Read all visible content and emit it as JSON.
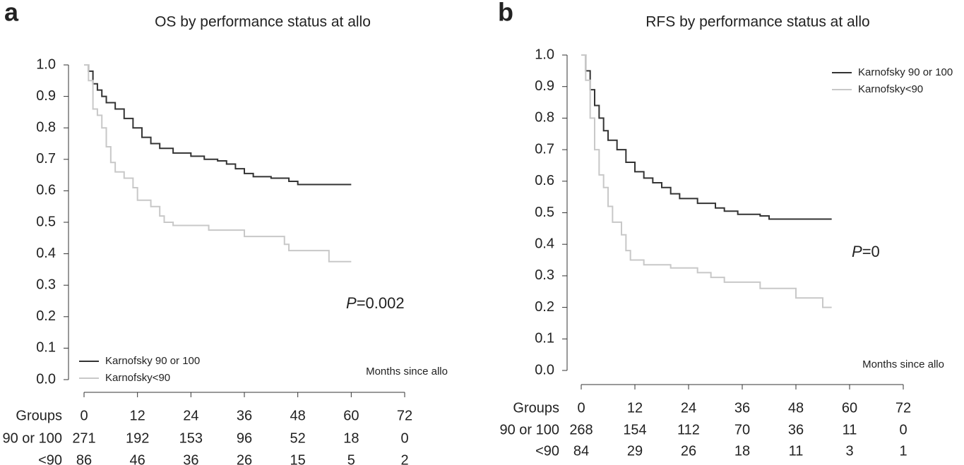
{
  "chart_data": [
    {
      "type": "line",
      "panel": "a",
      "title": "OS by performance status at allo",
      "x_label": "Months since allo",
      "xlim": [
        0,
        72
      ],
      "xticks": [
        0,
        12,
        24,
        36,
        48,
        60,
        72
      ],
      "ylim": [
        0,
        1
      ],
      "yticks": [
        {
          "value": 0,
          "label": "0.0"
        },
        {
          "value": 0.1,
          "label": "0.1"
        },
        {
          "value": 0.2,
          "label": "0.2"
        },
        {
          "value": 0.3,
          "label": "0.3"
        },
        {
          "value": 0.4,
          "label": "0.4"
        },
        {
          "value": 0.5,
          "label": "0.5"
        },
        {
          "value": 0.6,
          "label": "0.6"
        },
        {
          "value": 0.7,
          "label": "0.7"
        },
        {
          "value": 0.8,
          "label": "0.8"
        },
        {
          "value": 0.9,
          "label": "0.9"
        },
        {
          "value": 1,
          "label": "1.0"
        }
      ],
      "step": true,
      "legend": "lower left",
      "annotation": {
        "symbol": "P",
        "text": "=0.002"
      },
      "series": [
        {
          "name": "Karnofsky 90 or 100",
          "color": "#333333",
          "x": [
            0,
            1,
            2,
            3,
            4,
            5,
            7,
            9,
            11,
            13,
            15,
            17,
            20,
            24,
            27,
            30,
            32,
            34,
            36,
            38,
            42,
            46,
            48,
            60
          ],
          "values": [
            1.0,
            0.98,
            0.94,
            0.92,
            0.9,
            0.88,
            0.86,
            0.83,
            0.8,
            0.77,
            0.75,
            0.735,
            0.72,
            0.71,
            0.7,
            0.695,
            0.685,
            0.67,
            0.655,
            0.645,
            0.64,
            0.63,
            0.62,
            0.62
          ]
        },
        {
          "name": "Karnofsky<90",
          "color": "#c8c8c8",
          "x": [
            0,
            1,
            2,
            3,
            4,
            5,
            6,
            7,
            9,
            11,
            12,
            15,
            17,
            18,
            20,
            28,
            36,
            45,
            46,
            55,
            60
          ],
          "values": [
            1.0,
            0.95,
            0.86,
            0.84,
            0.8,
            0.74,
            0.69,
            0.66,
            0.64,
            0.61,
            0.57,
            0.55,
            0.52,
            0.5,
            0.49,
            0.475,
            0.455,
            0.43,
            0.41,
            0.375,
            0.375
          ]
        }
      ],
      "risk_table": {
        "label": "Groups",
        "rows": [
          {
            "name": "90 or 100",
            "counts": [
              271,
              192,
              153,
              96,
              52,
              18,
              0
            ]
          },
          {
            "name": "<90",
            "counts": [
              86,
              46,
              36,
              26,
              15,
              5,
              2
            ]
          }
        ]
      }
    },
    {
      "type": "line",
      "panel": "b",
      "title": "RFS by performance status at allo",
      "x_label": "Months since allo",
      "xlim": [
        0,
        72
      ],
      "xticks": [
        0,
        12,
        24,
        36,
        48,
        60,
        72
      ],
      "ylim": [
        0,
        1
      ],
      "yticks": [
        {
          "value": 0,
          "label": "0.0"
        },
        {
          "value": 0.1,
          "label": "0.1"
        },
        {
          "value": 0.2,
          "label": "0.2"
        },
        {
          "value": 0.3,
          "label": "0.3"
        },
        {
          "value": 0.4,
          "label": "0.4"
        },
        {
          "value": 0.5,
          "label": "0.5"
        },
        {
          "value": 0.6,
          "label": "0.6"
        },
        {
          "value": 0.7,
          "label": "0.7"
        },
        {
          "value": 0.8,
          "label": "0.8"
        },
        {
          "value": 0.9,
          "label": "0.9"
        },
        {
          "value": 1,
          "label": "1.0"
        }
      ],
      "step": true,
      "legend": "upper right",
      "annotation": {
        "symbol": "P",
        "text": "=0"
      },
      "series": [
        {
          "name": "Karnofsky 90 or 100",
          "color": "#333333",
          "x": [
            0,
            1,
            2,
            3,
            4,
            5,
            6,
            8,
            10,
            12,
            14,
            16,
            18,
            20,
            22,
            26,
            30,
            32,
            35,
            40,
            42,
            56
          ],
          "values": [
            1.0,
            0.95,
            0.89,
            0.84,
            0.8,
            0.76,
            0.73,
            0.7,
            0.66,
            0.63,
            0.61,
            0.595,
            0.58,
            0.56,
            0.545,
            0.53,
            0.515,
            0.505,
            0.495,
            0.49,
            0.48,
            0.48
          ]
        },
        {
          "name": "Karnofsky<90",
          "color": "#c8c8c8",
          "x": [
            0,
            1,
            2,
            3,
            4,
            5,
            6,
            7,
            9,
            10,
            11,
            14,
            20,
            26,
            29,
            32,
            40,
            48,
            54,
            56
          ],
          "values": [
            1.0,
            0.92,
            0.8,
            0.7,
            0.62,
            0.58,
            0.52,
            0.47,
            0.43,
            0.38,
            0.35,
            0.335,
            0.325,
            0.31,
            0.295,
            0.28,
            0.26,
            0.23,
            0.2,
            0.2
          ]
        }
      ],
      "risk_table": {
        "label": "Groups",
        "rows": [
          {
            "name": "90 or 100",
            "counts": [
              268,
              154,
              112,
              70,
              36,
              11,
              0
            ]
          },
          {
            "name": "<90",
            "counts": [
              84,
              29,
              26,
              18,
              11,
              3,
              1
            ]
          }
        ]
      }
    }
  ]
}
